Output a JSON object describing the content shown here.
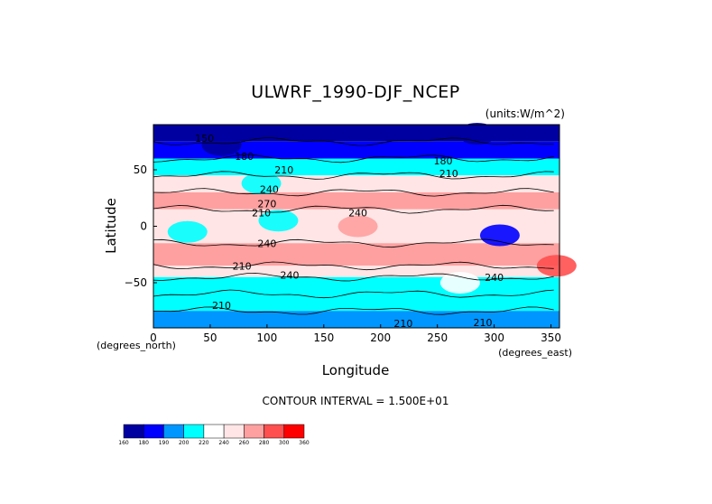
{
  "chart_data": {
    "type": "heatmap",
    "title": "ULWRF_1990-DJF_NCEP",
    "units_note": "(units:W/m^2)",
    "xlabel": "Longitude",
    "ylabel": "Latitude",
    "x_unit_note": "(degrees_east)",
    "y_unit_note": "(degrees_north)",
    "xlim": [
      0,
      357.5
    ],
    "ylim": [
      -90,
      90
    ],
    "x_ticks": [
      "0",
      "50",
      "100",
      "150",
      "200",
      "250",
      "300",
      "350"
    ],
    "y_ticks": [
      "50",
      "0",
      "-50"
    ],
    "contour_interval_text": "CONTOUR INTERVAL = 1.500E+01",
    "contour_labels": [
      "150",
      "180",
      "210",
      "240",
      "270",
      "210",
      "180",
      "210",
      "240",
      "240",
      "210",
      "240",
      "240",
      "210",
      "210",
      "210"
    ],
    "colorbar": {
      "levels": [
        "160",
        "180",
        "190",
        "200",
        "220",
        "240",
        "260",
        "280",
        "300",
        "360"
      ],
      "colors": [
        "#0000a0",
        "#0000ff",
        "#0096ff",
        "#00ffff",
        "#ffffff",
        "#ffe5e5",
        "#ffa0a0",
        "#ff4f4f",
        "#ff0000"
      ]
    },
    "lat_bands": [
      {
        "lat_min": 75,
        "lat_max": 90,
        "value": 165
      },
      {
        "lat_min": 60,
        "lat_max": 75,
        "value": 185
      },
      {
        "lat_min": 45,
        "lat_max": 60,
        "value": 205
      },
      {
        "lat_min": 30,
        "lat_max": 45,
        "value": 240
      },
      {
        "lat_min": 15,
        "lat_max": 30,
        "value": 275
      },
      {
        "lat_min": -15,
        "lat_max": 15,
        "value": 250
      },
      {
        "lat_min": -35,
        "lat_max": -15,
        "value": 275
      },
      {
        "lat_min": -45,
        "lat_max": -35,
        "value": 245
      },
      {
        "lat_min": -60,
        "lat_max": -45,
        "value": 210
      },
      {
        "lat_min": -75,
        "lat_max": -60,
        "value": 200
      },
      {
        "lat_min": -90,
        "lat_max": -75,
        "value": 190
      }
    ],
    "features": [
      {
        "lon": 30,
        "lat": -5,
        "value": 205
      },
      {
        "lon": 305,
        "lat": -8,
        "value": 180
      },
      {
        "lon": 110,
        "lat": 5,
        "value": 215
      },
      {
        "lon": 180,
        "lat": 0,
        "value": 260
      },
      {
        "lon": 95,
        "lat": 38,
        "value": 200
      },
      {
        "lon": 60,
        "lat": 72,
        "value": 170
      },
      {
        "lon": 285,
        "lat": 82,
        "value": 155
      },
      {
        "lon": 270,
        "lat": -50,
        "value": 230
      },
      {
        "lon": 355,
        "lat": -35,
        "value": 280
      }
    ]
  }
}
